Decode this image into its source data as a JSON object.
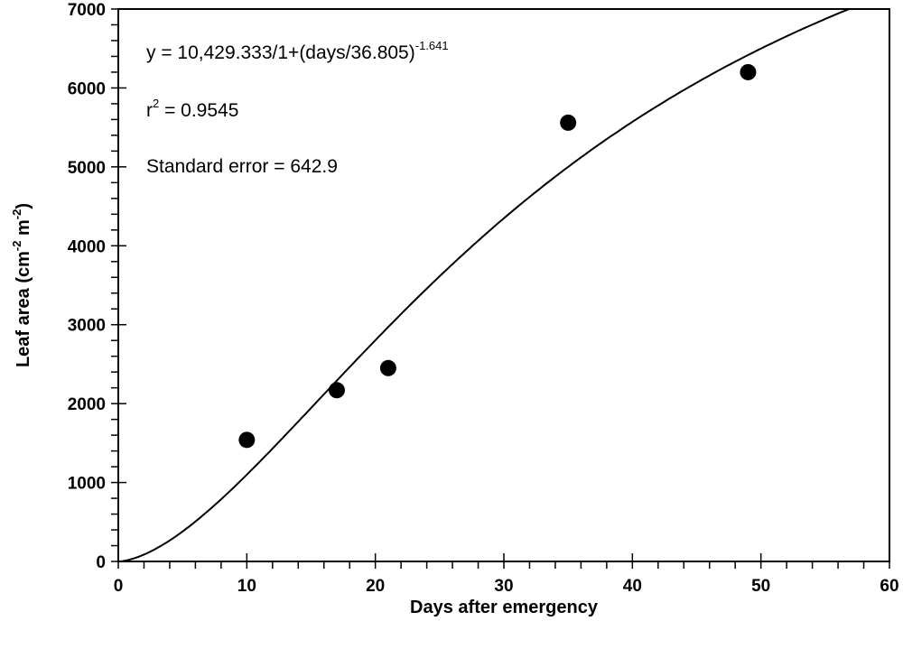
{
  "chart_data": {
    "type": "scatter",
    "title": "",
    "xlabel": "Days after emergency",
    "ylabel_parts": {
      "main": "Leaf area (cm",
      "sup1": "-2",
      "mid": " m",
      "sup2": "-2",
      "end": ")"
    },
    "xlim": [
      0,
      60
    ],
    "ylim": [
      0,
      7000
    ],
    "x_ticks": [
      "0",
      "10",
      "20",
      "30",
      "40",
      "50",
      "60"
    ],
    "y_ticks": [
      "0",
      "1000",
      "2000",
      "3000",
      "4000",
      "5000",
      "6000",
      "7000"
    ],
    "grid": false,
    "points": [
      {
        "x": 10,
        "y": 1540
      },
      {
        "x": 17,
        "y": 2170
      },
      {
        "x": 21,
        "y": 2450
      },
      {
        "x": 35,
        "y": 5560
      },
      {
        "x": 49,
        "y": 6200
      }
    ],
    "fit": {
      "a": 10429.333,
      "b": 36.805,
      "c": -1.641
    },
    "annotations": {
      "equation": "y = 10,429.333/1+(days/36.805)",
      "equation_exp": "-1.641",
      "r2_prefix": "r",
      "r2_sup": "2",
      "r2_value": " = 0.9545",
      "std_error": "Standard error = 642.9"
    },
    "marker_color": "#000000",
    "line_color": "#000000"
  }
}
